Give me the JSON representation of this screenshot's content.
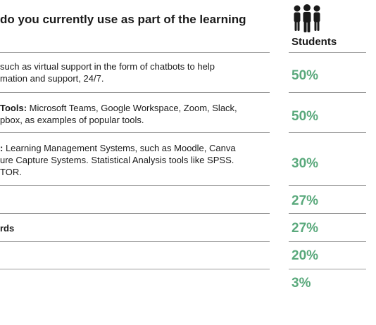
{
  "header": {
    "title": "do you currently use as part of the learning",
    "column_label": "Students",
    "icon": "people-group-icon"
  },
  "rows": [
    {
      "label_bold": "",
      "line1": " such as virtual support in the form of chatbots to help",
      "line2": "mation and support, 24/7.",
      "line3": "",
      "value": "50%"
    },
    {
      "label_bold": "Tools:",
      "line1": " Microsoft Teams, Google Workspace, Zoom, Slack,",
      "line2": "pbox, as examples of popular tools.",
      "line3": "",
      "value": "50%"
    },
    {
      "label_bold": ":",
      "line1": " Learning Management Systems, such as Moodle, Canva",
      "line2": "ure Capture Systems. Statistical Analysis tools like SPSS.",
      "line3": "TOR.",
      "value": "30%"
    },
    {
      "label_bold": "",
      "line1": "",
      "line2": "",
      "line3": "",
      "value": "27%"
    },
    {
      "label_bold": "rds",
      "line1": "",
      "line2": "",
      "line3": "",
      "value": "27%"
    },
    {
      "label_bold": "",
      "line1": "",
      "line2": "",
      "line3": "",
      "value": "20%"
    },
    {
      "label_bold": "",
      "line1": "",
      "line2": "",
      "line3": "",
      "value": "3%"
    }
  ],
  "colors": {
    "accent": "#5aa97c",
    "rule": "#9a9a9a",
    "text": "#1a1a1a"
  }
}
